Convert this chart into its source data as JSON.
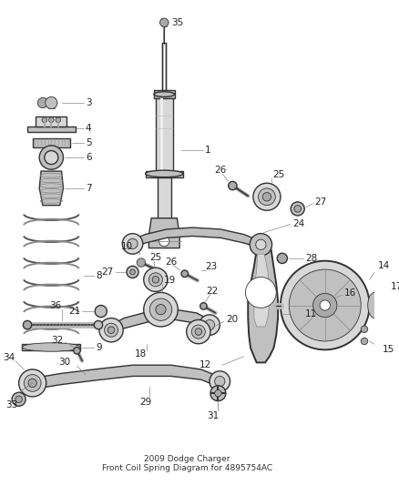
{
  "title": "2009 Dodge Charger\nFront Coil Spring Diagram for 4895754AC",
  "background_color": "#ffffff",
  "fig_width": 4.38,
  "fig_height": 5.33,
  "dpi": 100,
  "label_fontsize": 7.5,
  "label_color": "#222222",
  "line_color": "#444444",
  "part_fill": "#d8d8d8",
  "part_fill_dark": "#aaaaaa",
  "part_fill_mid": "#c0c0c0",
  "part_stroke": "#333333"
}
